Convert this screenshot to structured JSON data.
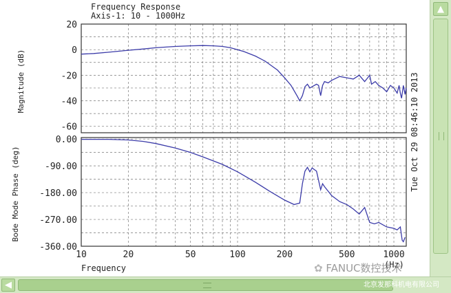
{
  "window": {
    "title_line1": "Frequency Response",
    "title_line2": "Axis-1: 10 - 1000Hz",
    "timestamp": "Tue Oct 29 08:46:10 2013",
    "watermark_brand": "FANUC数控技术",
    "watermark_org": "北京发那科机电有限公司",
    "colors": {
      "trace": "#3a3aa8",
      "scrollbar": "#d4e8c4",
      "scroll_button": "#b9dba0"
    },
    "icons": {
      "scroll_up": "triangle-up-icon",
      "scroll_left": "chevron-left-icon",
      "wechat": "wechat-icon"
    }
  },
  "chart_data": [
    {
      "type": "line",
      "panel": "magnitude",
      "xscale": "log",
      "xlim": [
        10,
        1200
      ],
      "ylim": [
        -65,
        20
      ],
      "ylabel": "Magnitude (dB)",
      "yticks": [
        20,
        0,
        -20,
        -40,
        -60
      ],
      "ytick_labels": [
        "20",
        "0",
        "-20",
        "-40",
        "-60"
      ],
      "grid": true,
      "series": [
        {
          "x": [
            10,
            12,
            15,
            20,
            25,
            30,
            40,
            50,
            60,
            70,
            80,
            90,
            100,
            110,
            130,
            150,
            180,
            200,
            220,
            240,
            250,
            260,
            270,
            280,
            290,
            300,
            320,
            330,
            340,
            350,
            360,
            380,
            400,
            450,
            500,
            550,
            600,
            650,
            680,
            700,
            720,
            760,
            800,
            850,
            900,
            950,
            1000,
            1050,
            1080,
            1100,
            1120,
            1150,
            1180,
            1200
          ],
          "y": [
            -3.5,
            -3,
            -2,
            -0.5,
            0.5,
            1.5,
            2.5,
            3,
            3.2,
            3,
            2.5,
            1.5,
            0,
            -1.5,
            -5,
            -9,
            -16,
            -22,
            -28,
            -36,
            -40,
            -36,
            -29,
            -27,
            -30,
            -29,
            -27,
            -28,
            -36,
            -28,
            -25,
            -26,
            -24,
            -21,
            -22,
            -23,
            -20,
            -25,
            -22,
            -20,
            -27,
            -25,
            -28,
            -30,
            -33,
            -28,
            -30,
            -34,
            -28,
            -34,
            -38,
            -28,
            -35,
            -30
          ]
        }
      ]
    },
    {
      "type": "line",
      "panel": "phase",
      "xscale": "log",
      "xlim": [
        10,
        1200
      ],
      "ylim": [
        -360,
        5
      ],
      "ylabel": "Bode Mode Phase (deg)",
      "yticks": [
        0,
        -90,
        -180,
        -270,
        -360
      ],
      "ytick_labels": [
        "0.00",
        "-90.00",
        "-180.00",
        "-270.00",
        "-360.00"
      ],
      "xticks": [
        10,
        20,
        50,
        100,
        200,
        500,
        1000
      ],
      "xtick_labels": [
        "10",
        "20",
        "50",
        "100",
        "200",
        "500",
        "1000"
      ],
      "xlabel": "Frequency",
      "xunit": "(Hz)",
      "grid": true,
      "series": [
        {
          "x": [
            10,
            15,
            20,
            25,
            30,
            40,
            50,
            60,
            80,
            100,
            130,
            160,
            200,
            230,
            250,
            260,
            270,
            280,
            290,
            300,
            320,
            340,
            350,
            360,
            400,
            450,
            500,
            550,
            600,
            650,
            700,
            750,
            800,
            900,
            1000,
            1050,
            1100,
            1130,
            1150,
            1180
          ],
          "y": [
            -1,
            -1,
            -3,
            -8,
            -15,
            -30,
            -45,
            -60,
            -85,
            -110,
            -145,
            -175,
            -205,
            -220,
            -215,
            -150,
            -108,
            -95,
            -110,
            -97,
            -108,
            -170,
            -150,
            -160,
            -190,
            -210,
            -220,
            -235,
            -252,
            -230,
            -280,
            -285,
            -280,
            -295,
            -300,
            -305,
            -295,
            -340,
            -345,
            -330
          ]
        }
      ]
    }
  ]
}
